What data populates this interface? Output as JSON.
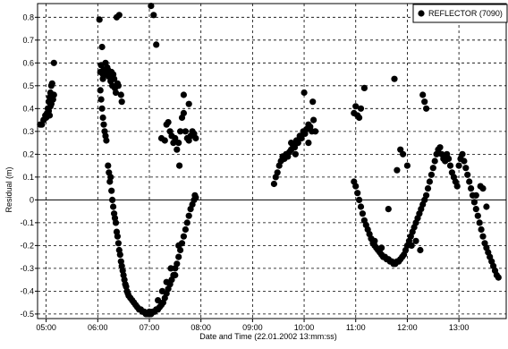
{
  "chart_data": {
    "type": "scatter",
    "xlabel": "Date and Time (22.01.2002 13:mm:ss)",
    "ylabel": "Residual (m)",
    "x_ticks": [
      "05:00",
      "06:00",
      "07:00",
      "08:00",
      "09:00",
      "10:00",
      "11:00",
      "12:00",
      "13:00"
    ],
    "y_ticks": [
      "0.8",
      "0.7",
      "0.6",
      "0.5",
      "0.4",
      "0.3",
      "0.2",
      "0.1",
      "0",
      "-0.1",
      "-0.2",
      "-0.3",
      "-0.4",
      "-0.5"
    ],
    "xlim": [
      "04:50",
      "13:55"
    ],
    "ylim": [
      -0.52,
      0.86
    ],
    "grid": true,
    "legend_position": "top-right",
    "series": [
      {
        "name": "REFLECTOR  (7090)",
        "color": "#000000",
        "points": [
          [
            "04:53",
            0.33
          ],
          [
            "04:55",
            0.33
          ],
          [
            "04:57",
            0.35
          ],
          [
            "04:59",
            0.37
          ],
          [
            "05:00",
            0.36
          ],
          [
            "05:01",
            0.38
          ],
          [
            "05:02",
            0.4
          ],
          [
            "05:03",
            0.39
          ],
          [
            "05:03",
            0.43
          ],
          [
            "05:04",
            0.45
          ],
          [
            "05:04",
            0.37
          ],
          [
            "05:05",
            0.47
          ],
          [
            "05:05",
            0.41
          ],
          [
            "05:06",
            0.5
          ],
          [
            "05:06",
            0.42
          ],
          [
            "05:07",
            0.51
          ],
          [
            "05:08",
            0.44
          ],
          [
            "05:09",
            0.46
          ],
          [
            "05:09",
            0.6
          ],
          [
            "06:02",
            0.79
          ],
          [
            "06:03",
            0.56
          ],
          [
            "06:04",
            0.59
          ],
          [
            "06:05",
            0.67
          ],
          [
            "06:06",
            0.53
          ],
          [
            "06:06",
            0.55
          ],
          [
            "06:07",
            0.57
          ],
          [
            "06:08",
            0.56
          ],
          [
            "06:09",
            0.6
          ],
          [
            "06:10",
            0.55
          ],
          [
            "06:11",
            0.58
          ],
          [
            "06:12",
            0.57
          ],
          [
            "06:13",
            0.54
          ],
          [
            "06:14",
            0.56
          ],
          [
            "06:15",
            0.52
          ],
          [
            "06:16",
            0.56
          ],
          [
            "06:17",
            0.5
          ],
          [
            "06:18",
            0.55
          ],
          [
            "06:19",
            0.53
          ],
          [
            "06:20",
            0.49
          ],
          [
            "06:21",
            0.47
          ],
          [
            "06:22",
            0.8
          ],
          [
            "06:23",
            0.51
          ],
          [
            "06:24",
            0.5
          ],
          [
            "06:25",
            0.81
          ],
          [
            "06:27",
            0.46
          ],
          [
            "06:28",
            0.43
          ],
          [
            "06:03",
            0.48
          ],
          [
            "06:04",
            0.44
          ],
          [
            "06:05",
            0.4
          ],
          [
            "06:06",
            0.36
          ],
          [
            "06:07",
            0.33
          ],
          [
            "06:08",
            0.3
          ],
          [
            "06:09",
            0.28
          ],
          [
            "06:10",
            0.26
          ],
          [
            "06:12",
            0.15
          ],
          [
            "06:13",
            0.12
          ],
          [
            "06:14",
            0.08
          ],
          [
            "06:15",
            0.1
          ],
          [
            "06:16",
            0.04
          ],
          [
            "06:17",
            0.0
          ],
          [
            "06:18",
            -0.03
          ],
          [
            "06:19",
            -0.06
          ],
          [
            "06:20",
            -0.08
          ],
          [
            "06:21",
            -0.1
          ],
          [
            "06:22",
            -0.14
          ],
          [
            "06:23",
            -0.16
          ],
          [
            "06:24",
            -0.19
          ],
          [
            "06:25",
            -0.22
          ],
          [
            "06:26",
            -0.24
          ],
          [
            "06:27",
            -0.27
          ],
          [
            "06:28",
            -0.29
          ],
          [
            "06:29",
            -0.31
          ],
          [
            "06:30",
            -0.33
          ],
          [
            "06:31",
            -0.35
          ],
          [
            "06:32",
            -0.37
          ],
          [
            "06:33",
            -0.38
          ],
          [
            "06:34",
            -0.4
          ],
          [
            "06:35",
            -0.41
          ],
          [
            "06:36",
            -0.42
          ],
          [
            "06:38",
            -0.43
          ],
          [
            "06:40",
            -0.44
          ],
          [
            "06:42",
            -0.45
          ],
          [
            "06:44",
            -0.46
          ],
          [
            "06:46",
            -0.47
          ],
          [
            "06:48",
            -0.48
          ],
          [
            "06:50",
            -0.48
          ],
          [
            "06:52",
            -0.49
          ],
          [
            "06:54",
            -0.49
          ],
          [
            "06:56",
            -0.5
          ],
          [
            "06:58",
            -0.5
          ],
          [
            "07:00",
            -0.49
          ],
          [
            "07:02",
            -0.5
          ],
          [
            "07:04",
            -0.49
          ],
          [
            "07:06",
            -0.49
          ],
          [
            "07:08",
            -0.48
          ],
          [
            "07:10",
            -0.48
          ],
          [
            "07:12",
            -0.47
          ],
          [
            "07:14",
            -0.46
          ],
          [
            "07:16",
            -0.45
          ],
          [
            "07:18",
            -0.43
          ],
          [
            "07:20",
            -0.41
          ],
          [
            "07:22",
            -0.39
          ],
          [
            "07:24",
            -0.37
          ],
          [
            "07:26",
            -0.35
          ],
          [
            "07:28",
            -0.33
          ],
          [
            "07:30",
            -0.3
          ],
          [
            "07:32",
            -0.28
          ],
          [
            "07:34",
            -0.25
          ],
          [
            "07:36",
            -0.22
          ],
          [
            "07:38",
            -0.19
          ],
          [
            "07:40",
            -0.16
          ],
          [
            "07:42",
            -0.13
          ],
          [
            "07:44",
            -0.1
          ],
          [
            "07:46",
            -0.07
          ],
          [
            "07:48",
            -0.04
          ],
          [
            "07:50",
            -0.02
          ],
          [
            "07:52",
            0.0
          ],
          [
            "07:53",
            0.02
          ],
          [
            "07:54",
            0.01
          ],
          [
            "07:10",
            -0.44
          ],
          [
            "07:15",
            -0.4
          ],
          [
            "07:20",
            -0.36
          ],
          [
            "07:25",
            -0.3
          ],
          [
            "07:30",
            -0.33
          ],
          [
            "07:34",
            -0.2
          ],
          [
            "07:02",
            0.85
          ],
          [
            "07:05",
            0.81
          ],
          [
            "07:08",
            0.68
          ],
          [
            "07:14",
            0.27
          ],
          [
            "07:18",
            0.26
          ],
          [
            "07:20",
            0.33
          ],
          [
            "07:22",
            0.34
          ],
          [
            "07:24",
            0.3
          ],
          [
            "07:26",
            0.28
          ],
          [
            "07:28",
            0.25
          ],
          [
            "07:30",
            0.27
          ],
          [
            "07:32",
            0.22
          ],
          [
            "07:34",
            0.25
          ],
          [
            "07:36",
            0.3
          ],
          [
            "07:38",
            0.36
          ],
          [
            "07:40",
            0.38
          ],
          [
            "07:42",
            0.3
          ],
          [
            "07:44",
            0.27
          ],
          [
            "07:46",
            0.26
          ],
          [
            "07:48",
            0.28
          ],
          [
            "07:50",
            0.3
          ],
          [
            "07:52",
            0.29
          ],
          [
            "07:54",
            0.27
          ],
          [
            "07:35",
            0.15
          ],
          [
            "07:40",
            0.46
          ],
          [
            "07:46",
            0.42
          ],
          [
            "09:25",
            0.07
          ],
          [
            "09:27",
            0.1
          ],
          [
            "09:29",
            0.12
          ],
          [
            "09:31",
            0.15
          ],
          [
            "09:33",
            0.17
          ],
          [
            "09:35",
            0.19
          ],
          [
            "09:37",
            0.18
          ],
          [
            "09:39",
            0.2
          ],
          [
            "09:41",
            0.19
          ],
          [
            "09:43",
            0.21
          ],
          [
            "09:45",
            0.22
          ],
          [
            "09:47",
            0.24
          ],
          [
            "09:49",
            0.23
          ],
          [
            "09:51",
            0.26
          ],
          [
            "09:53",
            0.25
          ],
          [
            "09:55",
            0.28
          ],
          [
            "09:57",
            0.27
          ],
          [
            "09:59",
            0.3
          ],
          [
            "10:01",
            0.29
          ],
          [
            "10:03",
            0.31
          ],
          [
            "10:05",
            0.33
          ],
          [
            "10:07",
            0.32
          ],
          [
            "10:09",
            0.3
          ],
          [
            "10:11",
            0.35
          ],
          [
            "10:13",
            0.3
          ],
          [
            "10:00",
            0.47
          ],
          [
            "10:10",
            0.43
          ],
          [
            "10:05",
            0.25
          ],
          [
            "09:50",
            0.2
          ],
          [
            "09:45",
            0.25
          ],
          [
            "10:58",
            0.08
          ],
          [
            "11:00",
            0.06
          ],
          [
            "11:02",
            0.03
          ],
          [
            "11:04",
            0.0
          ],
          [
            "11:06",
            -0.03
          ],
          [
            "11:08",
            -0.06
          ],
          [
            "11:10",
            -0.09
          ],
          [
            "11:12",
            -0.11
          ],
          [
            "11:14",
            -0.13
          ],
          [
            "11:16",
            -0.15
          ],
          [
            "11:18",
            -0.17
          ],
          [
            "11:20",
            -0.19
          ],
          [
            "11:22",
            -0.2
          ],
          [
            "11:24",
            -0.21
          ],
          [
            "11:26",
            -0.22
          ],
          [
            "11:28",
            -0.23
          ],
          [
            "11:30",
            -0.24
          ],
          [
            "11:32",
            -0.25
          ],
          [
            "11:34",
            -0.25
          ],
          [
            "11:36",
            -0.26
          ],
          [
            "11:38",
            -0.26
          ],
          [
            "11:40",
            -0.27
          ],
          [
            "11:42",
            -0.27
          ],
          [
            "11:44",
            -0.28
          ],
          [
            "11:46",
            -0.28
          ],
          [
            "11:48",
            -0.27
          ],
          [
            "11:50",
            -0.27
          ],
          [
            "11:52",
            -0.26
          ],
          [
            "11:54",
            -0.25
          ],
          [
            "11:56",
            -0.24
          ],
          [
            "11:58",
            -0.22
          ],
          [
            "12:00",
            -0.2
          ],
          [
            "12:02",
            -0.18
          ],
          [
            "12:04",
            -0.16
          ],
          [
            "12:06",
            -0.14
          ],
          [
            "12:08",
            -0.12
          ],
          [
            "12:10",
            -0.1
          ],
          [
            "12:12",
            -0.08
          ],
          [
            "12:14",
            -0.06
          ],
          [
            "12:16",
            -0.04
          ],
          [
            "12:18",
            -0.02
          ],
          [
            "12:20",
            0.0
          ],
          [
            "12:22",
            0.02
          ],
          [
            "12:24",
            0.05
          ],
          [
            "12:26",
            0.08
          ],
          [
            "12:28",
            0.11
          ],
          [
            "12:30",
            0.14
          ],
          [
            "12:32",
            0.17
          ],
          [
            "12:34",
            0.2
          ],
          [
            "12:36",
            0.22
          ],
          [
            "12:38",
            0.23
          ],
          [
            "12:40",
            0.2
          ],
          [
            "12:42",
            0.18
          ],
          [
            "12:44",
            0.17
          ],
          [
            "12:46",
            0.2
          ],
          [
            "10:58",
            0.38
          ],
          [
            "11:00",
            0.41
          ],
          [
            "11:02",
            0.37
          ],
          [
            "11:04",
            0.36
          ],
          [
            "11:06",
            0.4
          ],
          [
            "11:10",
            0.49
          ],
          [
            "11:22",
            -0.18
          ],
          [
            "11:30",
            -0.21
          ],
          [
            "11:38",
            -0.04
          ],
          [
            "11:45",
            0.53
          ],
          [
            "11:48",
            0.13
          ],
          [
            "11:52",
            0.22
          ],
          [
            "11:55",
            0.2
          ],
          [
            "12:00",
            0.15
          ],
          [
            "12:05",
            -0.2
          ],
          [
            "12:10",
            -0.18
          ],
          [
            "12:15",
            -0.22
          ],
          [
            "12:18",
            0.46
          ],
          [
            "12:20",
            0.43
          ],
          [
            "12:22",
            0.4
          ],
          [
            "12:48",
            0.18
          ],
          [
            "12:50",
            0.15
          ],
          [
            "12:52",
            0.12
          ],
          [
            "12:54",
            0.1
          ],
          [
            "12:56",
            0.08
          ],
          [
            "12:58",
            0.06
          ],
          [
            "13:00",
            0.15
          ],
          [
            "13:02",
            0.18
          ],
          [
            "13:04",
            0.2
          ],
          [
            "13:06",
            0.17
          ],
          [
            "13:08",
            0.14
          ],
          [
            "13:10",
            0.11
          ],
          [
            "13:12",
            0.08
          ],
          [
            "13:14",
            0.05
          ],
          [
            "13:16",
            0.02
          ],
          [
            "13:18",
            -0.01
          ],
          [
            "13:20",
            -0.04
          ],
          [
            "13:22",
            -0.07
          ],
          [
            "13:24",
            -0.1
          ],
          [
            "13:26",
            -0.13
          ],
          [
            "13:28",
            -0.16
          ],
          [
            "13:30",
            -0.19
          ],
          [
            "13:32",
            -0.21
          ],
          [
            "13:34",
            -0.23
          ],
          [
            "13:36",
            -0.25
          ],
          [
            "13:38",
            -0.27
          ],
          [
            "13:40",
            -0.29
          ],
          [
            "13:42",
            -0.31
          ],
          [
            "13:44",
            -0.33
          ],
          [
            "13:46",
            -0.34
          ],
          [
            "13:20",
            0.02
          ],
          [
            "13:25",
            0.06
          ],
          [
            "13:28",
            0.05
          ],
          [
            "13:32",
            -0.03
          ]
        ]
      }
    ]
  }
}
